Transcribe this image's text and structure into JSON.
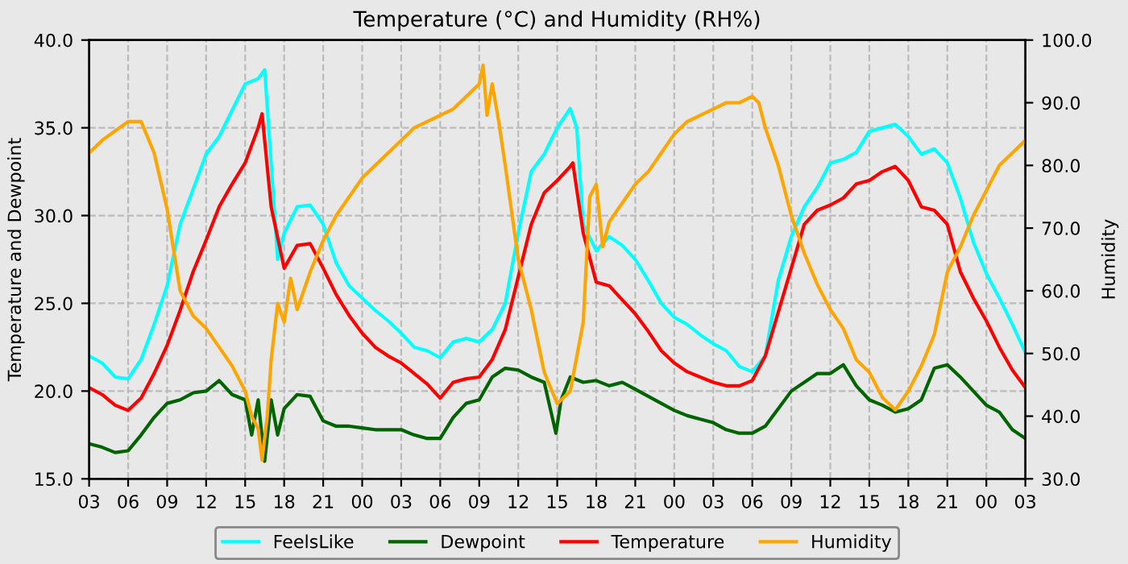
{
  "chart_data": {
    "type": "line",
    "title": "Temperature (°C) and Humidity (RH%)",
    "ylabel": "Temperature and Dewpoint",
    "y2label": "Humidity",
    "xlim": [
      3,
      75
    ],
    "ylim": [
      15,
      40
    ],
    "y2lim": [
      30,
      100
    ],
    "xticks": [
      {
        "value": 3,
        "label": "03"
      },
      {
        "value": 6,
        "label": "06"
      },
      {
        "value": 9,
        "label": "09"
      },
      {
        "value": 12,
        "label": "12"
      },
      {
        "value": 15,
        "label": "15"
      },
      {
        "value": 18,
        "label": "18"
      },
      {
        "value": 21,
        "label": "21"
      },
      {
        "value": 24,
        "label": "00"
      },
      {
        "value": 27,
        "label": "03"
      },
      {
        "value": 30,
        "label": "06"
      },
      {
        "value": 33,
        "label": "09"
      },
      {
        "value": 36,
        "label": "12"
      },
      {
        "value": 39,
        "label": "15"
      },
      {
        "value": 42,
        "label": "18"
      },
      {
        "value": 45,
        "label": "21"
      },
      {
        "value": 48,
        "label": "00"
      },
      {
        "value": 51,
        "label": "03"
      },
      {
        "value": 54,
        "label": "06"
      },
      {
        "value": 57,
        "label": "09"
      },
      {
        "value": 60,
        "label": "12"
      },
      {
        "value": 63,
        "label": "15"
      },
      {
        "value": 66,
        "label": "18"
      },
      {
        "value": 69,
        "label": "21"
      },
      {
        "value": 72,
        "label": "00"
      },
      {
        "value": 75,
        "label": "03"
      }
    ],
    "yticks": [
      {
        "value": 15,
        "label": "15.0"
      },
      {
        "value": 20,
        "label": "20.0"
      },
      {
        "value": 25,
        "label": "25.0"
      },
      {
        "value": 30,
        "label": "30.0"
      },
      {
        "value": 35,
        "label": "35.0"
      },
      {
        "value": 40,
        "label": "40.0"
      }
    ],
    "y2ticks": [
      {
        "value": 30,
        "label": "30.0"
      },
      {
        "value": 40,
        "label": "40.0"
      },
      {
        "value": 50,
        "label": "50.0"
      },
      {
        "value": 60,
        "label": "60.0"
      },
      {
        "value": 70,
        "label": "70.0"
      },
      {
        "value": 80,
        "label": "80.0"
      },
      {
        "value": 90,
        "label": "90.0"
      },
      {
        "value": 100,
        "label": "100.0"
      }
    ],
    "grid": true,
    "legend": "bottom",
    "marker": "none",
    "line_style": "solid",
    "series": [
      {
        "name": "FeelsLike",
        "color": "#00ffff",
        "x": [
          3,
          4,
          5,
          6,
          7,
          8,
          9,
          10,
          11,
          12,
          13,
          14,
          15,
          16,
          16.5,
          17,
          17.5,
          18,
          19,
          20,
          21,
          22,
          23,
          24,
          25,
          26,
          27,
          28,
          29,
          30,
          31,
          32,
          33,
          34,
          35,
          36,
          37,
          38,
          39,
          40,
          40.5,
          41,
          42,
          43,
          44,
          45,
          46,
          47,
          48,
          49,
          50,
          51,
          52,
          53,
          54,
          55,
          56,
          57,
          58,
          59,
          60,
          61,
          62,
          63,
          64,
          65,
          66,
          67,
          68,
          69,
          70,
          71,
          72,
          73,
          74,
          75
        ],
        "values": [
          22.0,
          21.6,
          20.8,
          20.7,
          21.8,
          23.8,
          26.0,
          29.5,
          31.5,
          33.5,
          34.5,
          36.0,
          37.5,
          37.8,
          38.3,
          33.0,
          27.5,
          29.0,
          30.5,
          30.6,
          29.5,
          27.3,
          26.0,
          25.3,
          24.6,
          24.0,
          23.3,
          22.5,
          22.3,
          21.9,
          22.8,
          23.0,
          22.8,
          23.5,
          25.0,
          29.0,
          32.5,
          33.5,
          35.0,
          36.1,
          35.0,
          29.5,
          28.0,
          28.8,
          28.3,
          27.5,
          26.3,
          25.0,
          24.2,
          23.8,
          23.2,
          22.7,
          22.3,
          21.4,
          21.1,
          22.0,
          26.3,
          28.8,
          30.5,
          31.6,
          33.0,
          33.2,
          33.6,
          34.8,
          35.0,
          35.2,
          34.5,
          33.5,
          33.8,
          33.0,
          31.0,
          28.5,
          26.7,
          25.3,
          23.8,
          22.2
        ]
      },
      {
        "name": "Dewpoint",
        "color": "#006400",
        "x": [
          3,
          4,
          5,
          6,
          7,
          8,
          9,
          10,
          11,
          12,
          13,
          14,
          15,
          15.5,
          16,
          16.5,
          17,
          17.5,
          18,
          19,
          20,
          21,
          22,
          23,
          24,
          25,
          26,
          27,
          28,
          29,
          30,
          31,
          32,
          33,
          34,
          35,
          36,
          37,
          38,
          38.9,
          39.3,
          40,
          41,
          42,
          43,
          44,
          45,
          46,
          47,
          48,
          49,
          50,
          51,
          52,
          53,
          54,
          55,
          56,
          57,
          58,
          59,
          60,
          61,
          62,
          63,
          64,
          65,
          66,
          67,
          68,
          69,
          70,
          71,
          72,
          73,
          74,
          75
        ],
        "values": [
          17.0,
          16.8,
          16.5,
          16.6,
          17.5,
          18.5,
          19.3,
          19.5,
          19.9,
          20.0,
          20.6,
          19.8,
          19.5,
          17.5,
          19.5,
          16.0,
          19.5,
          17.5,
          19.0,
          19.8,
          19.7,
          18.3,
          18.0,
          18.0,
          17.9,
          17.8,
          17.8,
          17.8,
          17.5,
          17.3,
          17.3,
          18.5,
          19.3,
          19.5,
          20.8,
          21.3,
          21.2,
          20.8,
          20.5,
          17.6,
          19.5,
          20.8,
          20.5,
          20.6,
          20.3,
          20.5,
          20.1,
          19.7,
          19.3,
          18.9,
          18.6,
          18.4,
          18.2,
          17.8,
          17.6,
          17.6,
          18.0,
          19.0,
          20.0,
          20.5,
          21.0,
          21.0,
          21.5,
          20.3,
          19.5,
          19.2,
          18.8,
          19.0,
          19.5,
          21.3,
          21.5,
          20.8,
          20.0,
          19.2,
          18.8,
          17.8,
          17.3
        ]
      },
      {
        "name": "Temperature",
        "color": "#ff0000",
        "x": [
          3,
          4,
          5,
          6,
          7,
          8,
          9,
          10,
          11,
          12,
          13,
          14,
          15,
          16,
          16.3,
          17,
          18,
          19,
          20,
          21,
          22,
          23,
          24,
          25,
          26,
          27,
          28,
          29,
          30,
          31,
          32,
          33,
          34,
          35,
          36,
          37,
          38,
          39,
          40,
          40.2,
          41,
          42,
          43,
          44,
          45,
          46,
          47,
          48,
          49,
          50,
          51,
          52,
          53,
          54,
          55,
          56,
          57,
          58,
          59,
          60,
          61,
          62,
          63,
          64,
          65,
          66,
          67,
          68,
          69,
          70,
          71,
          72,
          73,
          74,
          75
        ],
        "values": [
          20.2,
          19.8,
          19.2,
          18.9,
          19.6,
          21.0,
          22.6,
          24.6,
          26.8,
          28.6,
          30.5,
          31.8,
          33.0,
          35.0,
          35.8,
          30.5,
          27.0,
          28.3,
          28.4,
          27.0,
          25.5,
          24.3,
          23.3,
          22.5,
          22.0,
          21.6,
          21.0,
          20.4,
          19.6,
          20.5,
          20.7,
          20.8,
          21.8,
          23.5,
          26.5,
          29.5,
          31.3,
          32.0,
          32.8,
          33.0,
          29.0,
          26.2,
          26.0,
          25.2,
          24.4,
          23.4,
          22.3,
          21.6,
          21.1,
          20.8,
          20.5,
          20.3,
          20.3,
          20.6,
          22.0,
          24.5,
          27.0,
          29.5,
          30.3,
          30.6,
          31.0,
          31.8,
          32.0,
          32.5,
          32.8,
          32.0,
          30.5,
          30.3,
          29.5,
          26.8,
          25.3,
          24.0,
          22.5,
          21.2,
          20.2
        ]
      },
      {
        "name": "Humidity",
        "color": "#ffa500",
        "axis": "y2",
        "x": [
          3,
          4,
          5,
          6,
          7,
          8,
          9,
          10,
          11,
          12,
          13,
          14,
          15,
          15.5,
          16,
          16.3,
          16.7,
          17,
          17.5,
          18,
          18.5,
          19,
          20,
          21,
          22,
          23,
          24,
          25,
          26,
          27,
          28,
          29,
          30,
          31,
          32,
          33,
          33.3,
          33.6,
          34,
          34.5,
          35,
          36,
          37,
          38,
          39,
          40,
          41,
          41.5,
          42,
          42.5,
          43,
          44,
          45,
          46,
          47,
          48,
          49,
          50,
          51,
          52,
          53,
          54,
          54.5,
          55,
          56,
          57,
          58,
          59,
          60,
          61,
          62,
          63,
          64,
          65,
          66,
          67,
          68,
          69,
          70,
          71,
          72,
          73,
          74,
          75
        ],
        "values": [
          82,
          84,
          85.5,
          87,
          87,
          82,
          73,
          60,
          56,
          54,
          51,
          48,
          44,
          40,
          38,
          33,
          40,
          49,
          58,
          55,
          62,
          57,
          63,
          68,
          72,
          75,
          78,
          80,
          82,
          84,
          86,
          87,
          88,
          89,
          91,
          93,
          96,
          88,
          93,
          87,
          80,
          65,
          57,
          47,
          42,
          44,
          55,
          75,
          77,
          67,
          71,
          74,
          77,
          79,
          82,
          85,
          87,
          88,
          89,
          90,
          90,
          91,
          90,
          86,
          80,
          72,
          66,
          61,
          57,
          54,
          49,
          47,
          43,
          41,
          44,
          48,
          53,
          63,
          67,
          72,
          76,
          80,
          82,
          84
        ]
      }
    ]
  }
}
